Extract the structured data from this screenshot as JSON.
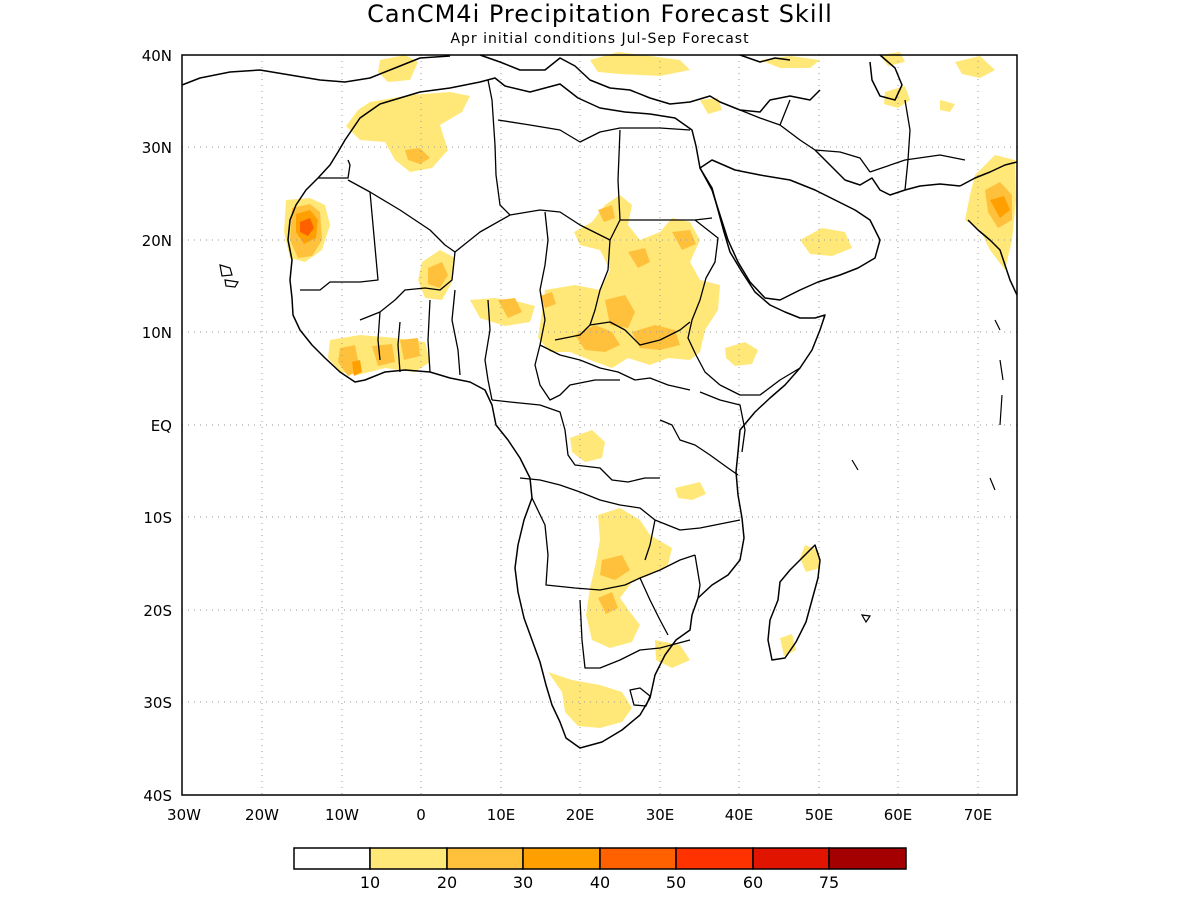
{
  "map": {
    "title": "CanCM4i Precipitation Forecast Skill",
    "subtitle": "Apr initial conditions  Jul-Sep Forecast",
    "lon_labels": [
      "30W",
      "20W",
      "10W",
      "0",
      "10E",
      "20E",
      "30E",
      "40E",
      "50E",
      "60E",
      "70E"
    ],
    "lat_labels": [
      "40N",
      "30N",
      "20N",
      "10N",
      "EQ",
      "10S",
      "20S",
      "30S",
      "40S"
    ],
    "lon_range": [
      -30,
      75
    ],
    "lat_range": [
      -40,
      40
    ],
    "grid": true
  },
  "legend": {
    "labels": [
      "10",
      "20",
      "30",
      "40",
      "50",
      "60",
      "75"
    ],
    "colors": [
      "#ffffff",
      "#ffe878",
      "#ffc03c",
      "#ffa000",
      "#ff6000",
      "#ff3200",
      "#e11400",
      "#a50000"
    ]
  },
  "colors": {
    "level1": "#ffe878",
    "level2": "#ffc03c",
    "level3": "#ffa000",
    "level4": "#ff6000"
  }
}
